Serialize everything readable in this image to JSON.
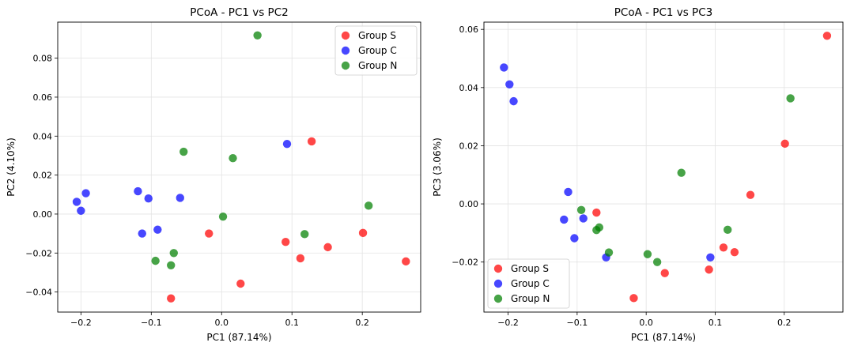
{
  "chart_data": [
    {
      "type": "scatter",
      "title": "PCoA - PC1 vs PC2",
      "xlabel": "PC1 (87.14%)",
      "ylabel": "PC2 (4.10%)",
      "xlim": [
        -0.233,
        0.283
      ],
      "ylim": [
        -0.0503,
        0.0985
      ],
      "xticks": [
        -0.2,
        -0.1,
        0.0,
        0.1,
        0.2
      ],
      "xtick_labels": [
        "−0.2",
        "−0.1",
        "0.0",
        "0.1",
        "0.2"
      ],
      "yticks": [
        -0.04,
        -0.02,
        0.0,
        0.02,
        0.04,
        0.06,
        0.08
      ],
      "ytick_labels": [
        "−0.04",
        "−0.02",
        "0.00",
        "0.02",
        "0.04",
        "0.06",
        "0.08"
      ],
      "grid": true,
      "legend_position": "top-right",
      "series": [
        {
          "name": "Group S",
          "color": "#ff0000",
          "points": [
            [
              0.128,
              0.0373
            ],
            [
              -0.018,
              -0.01
            ],
            [
              0.027,
              -0.0357
            ],
            [
              0.091,
              -0.0143
            ],
            [
              0.112,
              -0.0227
            ],
            [
              0.151,
              -0.017
            ],
            [
              0.201,
              -0.0097
            ],
            [
              0.262,
              -0.0243
            ],
            [
              -0.072,
              -0.0433
            ]
          ]
        },
        {
          "name": "Group C",
          "color": "#0000ff",
          "points": [
            [
              -0.206,
              0.0063
            ],
            [
              -0.2,
              0.0017
            ],
            [
              -0.193,
              0.0107
            ],
            [
              -0.119,
              0.0117
            ],
            [
              -0.104,
              0.008
            ],
            [
              -0.113,
              -0.01
            ],
            [
              -0.091,
              -0.008
            ],
            [
              -0.059,
              0.0083
            ],
            [
              0.093,
              0.036
            ]
          ]
        },
        {
          "name": "Group N",
          "color": "#008000",
          "points": [
            [
              0.051,
              0.0917
            ],
            [
              -0.054,
              0.032
            ],
            [
              0.016,
              0.0287
            ],
            [
              0.002,
              -0.0013
            ],
            [
              0.209,
              0.0043
            ],
            [
              0.118,
              -0.0103
            ],
            [
              -0.068,
              -0.02
            ],
            [
              -0.094,
              -0.024
            ],
            [
              -0.072,
              -0.0263
            ]
          ]
        }
      ]
    },
    {
      "type": "scatter",
      "title": "PCoA - PC1 vs PC3",
      "xlabel": "PC1 (87.14%)",
      "ylabel": "PC3 (3.06%)",
      "xlim": [
        -0.235,
        0.285
      ],
      "ylim": [
        -0.0372,
        0.0625
      ],
      "xticks": [
        -0.2,
        -0.1,
        0.0,
        0.1,
        0.2
      ],
      "xtick_labels": [
        "−0.2",
        "−0.1",
        "0.0",
        "0.1",
        "0.2"
      ],
      "yticks": [
        -0.02,
        0.0,
        0.02,
        0.04,
        0.06
      ],
      "ytick_labels": [
        "−0.02",
        "0.00",
        "0.02",
        "0.04",
        "0.06"
      ],
      "grid": true,
      "legend_position": "bottom-left",
      "series": [
        {
          "name": "Group S",
          "color": "#ff0000",
          "points": [
            [
              0.262,
              0.0578
            ],
            [
              0.201,
              0.0207
            ],
            [
              0.151,
              0.0031
            ],
            [
              -0.072,
              -0.003
            ],
            [
              0.112,
              -0.015
            ],
            [
              0.128,
              -0.0166
            ],
            [
              0.091,
              -0.0226
            ],
            [
              0.027,
              -0.0238
            ],
            [
              -0.018,
              -0.0324
            ]
          ]
        },
        {
          "name": "Group C",
          "color": "#0000ff",
          "points": [
            [
              -0.206,
              0.0469
            ],
            [
              -0.198,
              0.0411
            ],
            [
              -0.192,
              0.0353
            ],
            [
              -0.113,
              0.0041
            ],
            [
              -0.091,
              -0.005
            ],
            [
              -0.119,
              -0.0054
            ],
            [
              -0.104,
              -0.0118
            ],
            [
              -0.058,
              -0.0184
            ],
            [
              0.093,
              -0.0184
            ]
          ]
        },
        {
          "name": "Group N",
          "color": "#008000",
          "points": [
            [
              0.209,
              0.0363
            ],
            [
              0.051,
              0.0107
            ],
            [
              0.118,
              -0.0089
            ],
            [
              -0.094,
              -0.0021
            ],
            [
              -0.068,
              -0.0081
            ],
            [
              -0.072,
              -0.009
            ],
            [
              -0.054,
              -0.0167
            ],
            [
              0.002,
              -0.0173
            ],
            [
              0.016,
              -0.02
            ]
          ]
        }
      ]
    }
  ]
}
